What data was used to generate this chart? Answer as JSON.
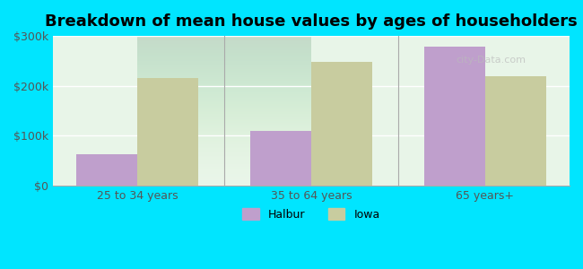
{
  "title": "Breakdown of mean house values by ages of householders",
  "categories": [
    "25 to 34 years",
    "35 to 64 years",
    "65 years+"
  ],
  "halbur_values": [
    62000,
    110000,
    278000
  ],
  "iowa_values": [
    215000,
    248000,
    220000
  ],
  "halbur_color": "#bf9fcc",
  "iowa_color": "#c8cc9f",
  "background_outer": "#00e5ff",
  "background_inner": "#e8f5e8",
  "ylim": [
    0,
    300000
  ],
  "yticks": [
    0,
    100000,
    200000,
    300000
  ],
  "ytick_labels": [
    "$0",
    "$100k",
    "$200k",
    "$300k"
  ],
  "legend_labels": [
    "Halbur",
    "Iowa"
  ],
  "bar_width": 0.35,
  "title_fontsize": 13,
  "watermark": "city-Data.com"
}
